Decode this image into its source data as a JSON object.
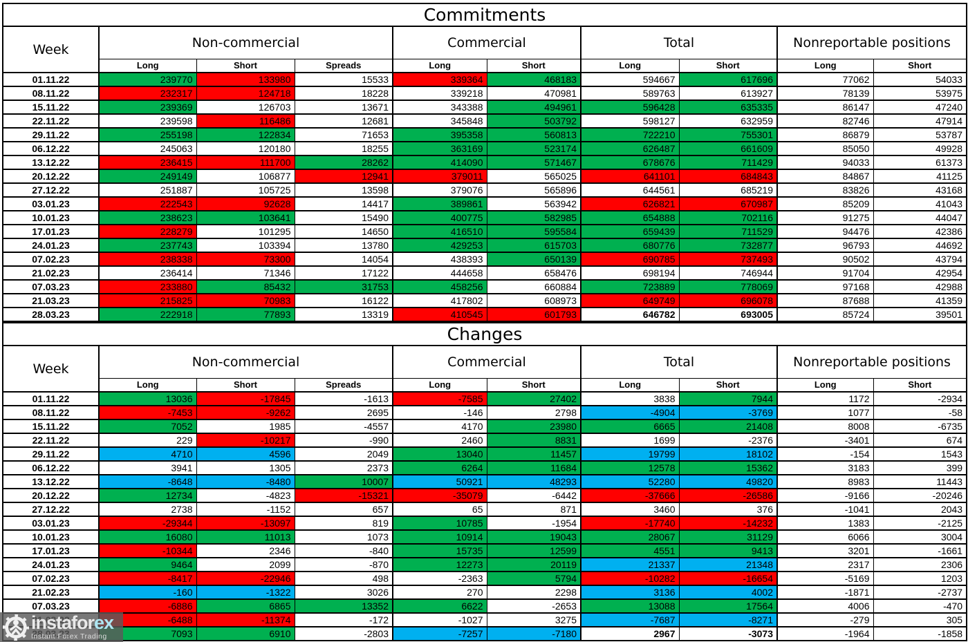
{
  "colors": {
    "g": "#00B050",
    "r": "#FF0000",
    "b": "#00B0F0",
    "w": "#FFFFFF"
  },
  "header_labels": {
    "week": "Week",
    "groups": [
      {
        "label": "Non-commercial",
        "cols": [
          "Long",
          "Short",
          "Spreads"
        ]
      },
      {
        "label": "Commercial",
        "cols": [
          "Long",
          "Short"
        ]
      },
      {
        "label": "Total",
        "cols": [
          "Long",
          "Short"
        ]
      },
      {
        "label": "Nonreportable positions",
        "cols": [
          "Long",
          "Short"
        ]
      }
    ]
  },
  "tables": [
    {
      "title": "Commitments",
      "bold_cols_last_row": [
        5,
        6
      ],
      "rows": [
        {
          "week": "01.11.22",
          "values": [
            "239770",
            "133980",
            "15533",
            "339364",
            "468183",
            "594667",
            "617696",
            "77062",
            "54033"
          ],
          "colors": [
            "g",
            "r",
            "w",
            "r",
            "g",
            "w",
            "g",
            "w",
            "w"
          ]
        },
        {
          "week": "08.11.22",
          "values": [
            "232317",
            "124718",
            "18228",
            "339218",
            "470981",
            "589763",
            "613927",
            "78139",
            "53975"
          ],
          "colors": [
            "r",
            "r",
            "w",
            "w",
            "w",
            "w",
            "w",
            "w",
            "w"
          ]
        },
        {
          "week": "15.11.22",
          "values": [
            "239369",
            "126703",
            "13671",
            "343388",
            "494961",
            "596428",
            "635335",
            "86147",
            "47240"
          ],
          "colors": [
            "g",
            "w",
            "w",
            "w",
            "g",
            "g",
            "g",
            "w",
            "w"
          ]
        },
        {
          "week": "22.11.22",
          "values": [
            "239598",
            "116486",
            "12681",
            "345848",
            "503792",
            "598127",
            "632959",
            "82746",
            "47914"
          ],
          "colors": [
            "w",
            "r",
            "w",
            "w",
            "g",
            "w",
            "w",
            "w",
            "w"
          ]
        },
        {
          "week": "29.11.22",
          "values": [
            "255198",
            "122834",
            "71653",
            "395358",
            "560813",
            "722210",
            "755301",
            "86879",
            "53787"
          ],
          "colors": [
            "g",
            "g",
            "w",
            "g",
            "g",
            "g",
            "g",
            "w",
            "w"
          ]
        },
        {
          "week": "06.12.22",
          "values": [
            "245063",
            "120180",
            "18255",
            "363169",
            "523174",
            "626487",
            "661609",
            "85050",
            "49928"
          ],
          "colors": [
            "w",
            "w",
            "w",
            "g",
            "g",
            "g",
            "g",
            "w",
            "w"
          ]
        },
        {
          "week": "13.12.22",
          "values": [
            "236415",
            "111700",
            "28262",
            "414090",
            "571467",
            "678676",
            "711429",
            "94033",
            "61373"
          ],
          "colors": [
            "r",
            "r",
            "g",
            "g",
            "g",
            "g",
            "g",
            "w",
            "w"
          ]
        },
        {
          "week": "20.12.22",
          "values": [
            "249149",
            "106877",
            "12941",
            "379011",
            "565025",
            "641101",
            "684843",
            "84867",
            "41125"
          ],
          "colors": [
            "g",
            "w",
            "r",
            "r",
            "w",
            "r",
            "r",
            "w",
            "w"
          ]
        },
        {
          "week": "27.12.22",
          "values": [
            "251887",
            "105725",
            "13598",
            "379076",
            "565896",
            "644561",
            "685219",
            "83826",
            "43168"
          ],
          "colors": [
            "w",
            "w",
            "w",
            "w",
            "w",
            "w",
            "w",
            "w",
            "w"
          ]
        },
        {
          "week": "03.01.23",
          "values": [
            "222543",
            "92628",
            "14417",
            "389861",
            "563942",
            "626821",
            "670987",
            "85209",
            "41043"
          ],
          "colors": [
            "r",
            "r",
            "w",
            "g",
            "w",
            "r",
            "r",
            "w",
            "w"
          ]
        },
        {
          "week": "10.01.23",
          "values": [
            "238623",
            "103641",
            "15490",
            "400775",
            "582985",
            "654888",
            "702116",
            "91275",
            "44047"
          ],
          "colors": [
            "g",
            "g",
            "w",
            "g",
            "g",
            "g",
            "g",
            "w",
            "w"
          ]
        },
        {
          "week": "17.01.23",
          "values": [
            "228279",
            "101295",
            "14650",
            "416510",
            "595584",
            "659439",
            "711529",
            "94476",
            "42386"
          ],
          "colors": [
            "r",
            "w",
            "w",
            "g",
            "g",
            "g",
            "g",
            "w",
            "w"
          ]
        },
        {
          "week": "24.01.23",
          "values": [
            "237743",
            "103394",
            "13780",
            "429253",
            "615703",
            "680776",
            "732877",
            "96793",
            "44692"
          ],
          "colors": [
            "g",
            "w",
            "w",
            "g",
            "g",
            "g",
            "g",
            "w",
            "w"
          ]
        },
        {
          "week": "07.02.23",
          "values": [
            "238338",
            "73300",
            "14054",
            "438393",
            "650139",
            "690785",
            "737493",
            "90502",
            "43794"
          ],
          "colors": [
            "r",
            "r",
            "w",
            "w",
            "g",
            "r",
            "r",
            "w",
            "w"
          ]
        },
        {
          "week": "21.02.23",
          "values": [
            "236414",
            "71346",
            "17122",
            "444658",
            "658476",
            "698194",
            "746944",
            "91704",
            "42954"
          ],
          "colors": [
            "w",
            "w",
            "w",
            "w",
            "w",
            "w",
            "w",
            "w",
            "w"
          ]
        },
        {
          "week": "07.03.23",
          "values": [
            "233880",
            "85432",
            "31753",
            "458256",
            "660884",
            "723889",
            "778069",
            "97168",
            "42988"
          ],
          "colors": [
            "r",
            "g",
            "g",
            "g",
            "w",
            "g",
            "g",
            "w",
            "w"
          ]
        },
        {
          "week": "21.03.23",
          "values": [
            "215825",
            "70983",
            "16122",
            "417802",
            "608973",
            "649749",
            "696078",
            "87688",
            "41359"
          ],
          "colors": [
            "r",
            "r",
            "w",
            "w",
            "w",
            "r",
            "r",
            "w",
            "w"
          ]
        },
        {
          "week": "28.03.23",
          "values": [
            "222918",
            "77893",
            "13319",
            "410545",
            "601793",
            "646782",
            "693005",
            "85724",
            "39501"
          ],
          "colors": [
            "g",
            "g",
            "w",
            "r",
            "r",
            "w",
            "w",
            "w",
            "w"
          ]
        }
      ]
    },
    {
      "title": "Changes",
      "bold_cols_last_row": [
        5,
        6
      ],
      "rows": [
        {
          "week": "01.11.22",
          "values": [
            "13036",
            "-17845",
            "-1613",
            "-7585",
            "27402",
            "3838",
            "7944",
            "1172",
            "-2934"
          ],
          "colors": [
            "g",
            "r",
            "w",
            "r",
            "g",
            "w",
            "g",
            "w",
            "w"
          ]
        },
        {
          "week": "08.11.22",
          "values": [
            "-7453",
            "-9262",
            "2695",
            "-146",
            "2798",
            "-4904",
            "-3769",
            "1077",
            "-58"
          ],
          "colors": [
            "r",
            "r",
            "w",
            "w",
            "w",
            "b",
            "b",
            "w",
            "w"
          ]
        },
        {
          "week": "15.11.22",
          "values": [
            "7052",
            "1985",
            "-4557",
            "4170",
            "23980",
            "6665",
            "21408",
            "8008",
            "-6735"
          ],
          "colors": [
            "g",
            "w",
            "w",
            "w",
            "g",
            "g",
            "g",
            "w",
            "w"
          ]
        },
        {
          "week": "22.11.22",
          "values": [
            "229",
            "-10217",
            "-990",
            "2460",
            "8831",
            "1699",
            "-2376",
            "-3401",
            "674"
          ],
          "colors": [
            "w",
            "r",
            "w",
            "w",
            "g",
            "w",
            "w",
            "w",
            "w"
          ]
        },
        {
          "week": "29.11.22",
          "values": [
            "4710",
            "4596",
            "2049",
            "13040",
            "11457",
            "19799",
            "18102",
            "-154",
            "1543"
          ],
          "colors": [
            "b",
            "b",
            "w",
            "g",
            "g",
            "b",
            "b",
            "w",
            "w"
          ]
        },
        {
          "week": "06.12.22",
          "values": [
            "3941",
            "1305",
            "2373",
            "6264",
            "11684",
            "12578",
            "15362",
            "3183",
            "399"
          ],
          "colors": [
            "w",
            "w",
            "w",
            "g",
            "g",
            "g",
            "g",
            "w",
            "w"
          ]
        },
        {
          "week": "13.12.22",
          "values": [
            "-8648",
            "-8480",
            "10007",
            "50921",
            "48293",
            "52280",
            "49820",
            "8983",
            "11443"
          ],
          "colors": [
            "b",
            "b",
            "g",
            "b",
            "b",
            "b",
            "b",
            "w",
            "w"
          ]
        },
        {
          "week": "20.12.22",
          "values": [
            "12734",
            "-4823",
            "-15321",
            "-35079",
            "-6442",
            "-37666",
            "-26586",
            "-9166",
            "-20246"
          ],
          "colors": [
            "g",
            "w",
            "r",
            "r",
            "w",
            "r",
            "r",
            "w",
            "w"
          ]
        },
        {
          "week": "27.12.22",
          "values": [
            "2738",
            "-1152",
            "657",
            "65",
            "871",
            "3460",
            "376",
            "-1041",
            "2043"
          ],
          "colors": [
            "w",
            "w",
            "w",
            "w",
            "w",
            "w",
            "w",
            "w",
            "w"
          ]
        },
        {
          "week": "03.01.23",
          "values": [
            "-29344",
            "-13097",
            "819",
            "10785",
            "-1954",
            "-17740",
            "-14232",
            "1383",
            "-2125"
          ],
          "colors": [
            "r",
            "r",
            "w",
            "g",
            "w",
            "r",
            "r",
            "w",
            "w"
          ]
        },
        {
          "week": "10.01.23",
          "values": [
            "16080",
            "11013",
            "1073",
            "10914",
            "19043",
            "28067",
            "31129",
            "6066",
            "3004"
          ],
          "colors": [
            "g",
            "g",
            "w",
            "g",
            "g",
            "g",
            "g",
            "w",
            "w"
          ]
        },
        {
          "week": "17.01.23",
          "values": [
            "-10344",
            "2346",
            "-840",
            "15735",
            "12599",
            "4551",
            "9413",
            "3201",
            "-1661"
          ],
          "colors": [
            "r",
            "w",
            "w",
            "g",
            "g",
            "g",
            "g",
            "w",
            "w"
          ]
        },
        {
          "week": "24.01.23",
          "values": [
            "9464",
            "2099",
            "-870",
            "12273",
            "20119",
            "21337",
            "21348",
            "2317",
            "2306"
          ],
          "colors": [
            "g",
            "w",
            "w",
            "g",
            "g",
            "b",
            "b",
            "w",
            "w"
          ]
        },
        {
          "week": "07.02.23",
          "values": [
            "-8417",
            "-22946",
            "498",
            "-2363",
            "5794",
            "-10282",
            "-16654",
            "-5169",
            "1203"
          ],
          "colors": [
            "r",
            "r",
            "w",
            "w",
            "g",
            "r",
            "r",
            "w",
            "w"
          ]
        },
        {
          "week": "21.02.23",
          "values": [
            "-160",
            "-1322",
            "3026",
            "270",
            "2298",
            "3136",
            "4002",
            "-1871",
            "-2737"
          ],
          "colors": [
            "b",
            "b",
            "w",
            "w",
            "w",
            "b",
            "b",
            "w",
            "w"
          ]
        },
        {
          "week": "07.03.23",
          "values": [
            "-6886",
            "6865",
            "13352",
            "6622",
            "-2653",
            "13088",
            "17564",
            "4006",
            "-470"
          ],
          "colors": [
            "r",
            "g",
            "g",
            "g",
            "w",
            "g",
            "g",
            "w",
            "w"
          ]
        },
        {
          "week": "21.03.23",
          "values": [
            "-6488",
            "-11374",
            "-172",
            "-1027",
            "3275",
            "-7687",
            "-8271",
            "-279",
            "305"
          ],
          "colors": [
            "r",
            "r",
            "w",
            "w",
            "w",
            "b",
            "b",
            "w",
            "w"
          ]
        },
        {
          "week": "28.03.23",
          "values": [
            "7093",
            "6910",
            "-2803",
            "-7257",
            "-7180",
            "2967",
            "-3073",
            "-1964",
            "-1858"
          ],
          "colors": [
            "g",
            "g",
            "w",
            "b",
            "b",
            "w",
            "w",
            "w",
            "w"
          ]
        }
      ]
    }
  ],
  "logo": {
    "brand_prefix": "instafor",
    "brand_suffix": "ex",
    "tagline": "Instant Forex Trading"
  }
}
